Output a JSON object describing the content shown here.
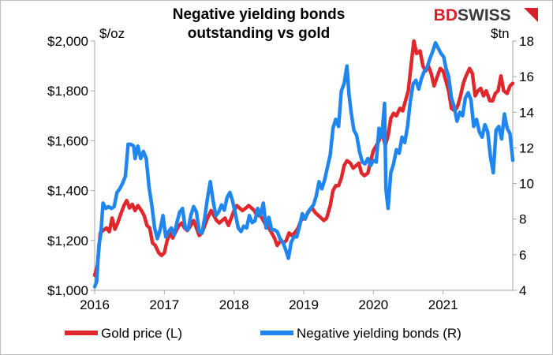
{
  "logo": {
    "part1": "BD",
    "part2": "SWISS"
  },
  "chart_data": {
    "type": "line",
    "title": [
      "Negative yielding bonds",
      "outstanding vs gold"
    ],
    "ylabel_left": "$/oz",
    "ylabel_right": "$tn",
    "x_ticks": [
      "2016",
      "2017",
      "2018",
      "2019",
      "2020",
      "2021"
    ],
    "xlim": [
      2016.0,
      2022.0
    ],
    "ylim_left": [
      1000,
      2000
    ],
    "ylim_right": [
      4,
      18
    ],
    "y_ticks_left": [
      "$1,000",
      "$1,200",
      "$1,400",
      "$1,600",
      "$1,800",
      "$2,000"
    ],
    "y_ticks_right": [
      "4",
      "6",
      "8",
      "10",
      "12",
      "14",
      "16",
      "18"
    ],
    "grid": false,
    "legend_position": "bottom",
    "colors": {
      "gold": "#e0282c",
      "bonds": "#1f86f0"
    },
    "series": [
      {
        "name": "Gold price (L)",
        "axis": "left",
        "points": [
          [
            2016.0,
            1060
          ],
          [
            2016.04,
            1100
          ],
          [
            2016.08,
            1230
          ],
          [
            2016.12,
            1240
          ],
          [
            2016.17,
            1250
          ],
          [
            2016.21,
            1235
          ],
          [
            2016.25,
            1290
          ],
          [
            2016.29,
            1245
          ],
          [
            2016.33,
            1270
          ],
          [
            2016.38,
            1310
          ],
          [
            2016.42,
            1340
          ],
          [
            2016.46,
            1360
          ],
          [
            2016.5,
            1330
          ],
          [
            2016.54,
            1345
          ],
          [
            2016.58,
            1320
          ],
          [
            2016.62,
            1340
          ],
          [
            2016.67,
            1320
          ],
          [
            2016.71,
            1300
          ],
          [
            2016.75,
            1260
          ],
          [
            2016.79,
            1250
          ],
          [
            2016.83,
            1190
          ],
          [
            2016.87,
            1180
          ],
          [
            2016.92,
            1150
          ],
          [
            2016.96,
            1140
          ],
          [
            2017.0,
            1150
          ],
          [
            2017.04,
            1200
          ],
          [
            2017.08,
            1230
          ],
          [
            2017.12,
            1210
          ],
          [
            2017.17,
            1240
          ],
          [
            2017.21,
            1260
          ],
          [
            2017.25,
            1270
          ],
          [
            2017.29,
            1250
          ],
          [
            2017.33,
            1240
          ],
          [
            2017.38,
            1260
          ],
          [
            2017.42,
            1280
          ],
          [
            2017.46,
            1250
          ],
          [
            2017.5,
            1220
          ],
          [
            2017.54,
            1230
          ],
          [
            2017.58,
            1260
          ],
          [
            2017.62,
            1290
          ],
          [
            2017.67,
            1320
          ],
          [
            2017.71,
            1300
          ],
          [
            2017.75,
            1280
          ],
          [
            2017.79,
            1270
          ],
          [
            2017.83,
            1280
          ],
          [
            2017.87,
            1290
          ],
          [
            2017.92,
            1260
          ],
          [
            2017.96,
            1290
          ],
          [
            2018.0,
            1320
          ],
          [
            2018.04,
            1340
          ],
          [
            2018.08,
            1330
          ],
          [
            2018.12,
            1320
          ],
          [
            2018.17,
            1330
          ],
          [
            2018.21,
            1340
          ],
          [
            2018.25,
            1330
          ],
          [
            2018.29,
            1320
          ],
          [
            2018.33,
            1300
          ],
          [
            2018.38,
            1300
          ],
          [
            2018.42,
            1280
          ],
          [
            2018.46,
            1260
          ],
          [
            2018.5,
            1250
          ],
          [
            2018.54,
            1230
          ],
          [
            2018.58,
            1210
          ],
          [
            2018.62,
            1180
          ],
          [
            2018.67,
            1200
          ],
          [
            2018.71,
            1190
          ],
          [
            2018.75,
            1200
          ],
          [
            2018.79,
            1230
          ],
          [
            2018.83,
            1220
          ],
          [
            2018.87,
            1230
          ],
          [
            2018.92,
            1250
          ],
          [
            2018.96,
            1280
          ],
          [
            2019.0,
            1290
          ],
          [
            2019.04,
            1300
          ],
          [
            2019.08,
            1320
          ],
          [
            2019.12,
            1330
          ],
          [
            2019.17,
            1310
          ],
          [
            2019.21,
            1300
          ],
          [
            2019.25,
            1290
          ],
          [
            2019.29,
            1280
          ],
          [
            2019.33,
            1290
          ],
          [
            2019.38,
            1340
          ],
          [
            2019.42,
            1400
          ],
          [
            2019.46,
            1420
          ],
          [
            2019.5,
            1420
          ],
          [
            2019.54,
            1450
          ],
          [
            2019.58,
            1500
          ],
          [
            2019.62,
            1520
          ],
          [
            2019.67,
            1510
          ],
          [
            2019.71,
            1490
          ],
          [
            2019.75,
            1500
          ],
          [
            2019.79,
            1510
          ],
          [
            2019.83,
            1470
          ],
          [
            2019.87,
            1460
          ],
          [
            2019.92,
            1470
          ],
          [
            2019.96,
            1520
          ],
          [
            2020.0,
            1560
          ],
          [
            2020.04,
            1580
          ],
          [
            2020.08,
            1600
          ],
          [
            2020.12,
            1640
          ],
          [
            2020.17,
            1580
          ],
          [
            2020.21,
            1620
          ],
          [
            2020.25,
            1690
          ],
          [
            2020.29,
            1710
          ],
          [
            2020.33,
            1700
          ],
          [
            2020.38,
            1730
          ],
          [
            2020.42,
            1720
          ],
          [
            2020.46,
            1760
          ],
          [
            2020.5,
            1800
          ],
          [
            2020.54,
            1900
          ],
          [
            2020.58,
            2000
          ],
          [
            2020.62,
            1950
          ],
          [
            2020.67,
            1960
          ],
          [
            2020.71,
            1900
          ],
          [
            2020.75,
            1880
          ],
          [
            2020.79,
            1900
          ],
          [
            2020.83,
            1870
          ],
          [
            2020.87,
            1820
          ],
          [
            2020.92,
            1860
          ],
          [
            2020.96,
            1890
          ],
          [
            2021.0,
            1880
          ],
          [
            2021.04,
            1840
          ],
          [
            2021.08,
            1800
          ],
          [
            2021.12,
            1730
          ],
          [
            2021.17,
            1720
          ],
          [
            2021.21,
            1740
          ],
          [
            2021.25,
            1780
          ],
          [
            2021.29,
            1830
          ],
          [
            2021.33,
            1860
          ],
          [
            2021.38,
            1890
          ],
          [
            2021.42,
            1870
          ],
          [
            2021.46,
            1780
          ],
          [
            2021.5,
            1800
          ],
          [
            2021.54,
            1810
          ],
          [
            2021.58,
            1780
          ],
          [
            2021.62,
            1800
          ],
          [
            2021.67,
            1760
          ],
          [
            2021.71,
            1760
          ],
          [
            2021.75,
            1790
          ],
          [
            2021.79,
            1800
          ],
          [
            2021.83,
            1860
          ],
          [
            2021.87,
            1800
          ],
          [
            2021.92,
            1790
          ],
          [
            2021.96,
            1820
          ],
          [
            2022.0,
            1830
          ]
        ]
      },
      {
        "name": "Negative yielding bonds (R)",
        "axis": "right",
        "points": [
          [
            2016.0,
            4.2
          ],
          [
            2016.03,
            4.5
          ],
          [
            2016.06,
            6.5
          ],
          [
            2016.09,
            7.2
          ],
          [
            2016.12,
            8.9
          ],
          [
            2016.16,
            8.6
          ],
          [
            2016.2,
            8.7
          ],
          [
            2016.24,
            8.6
          ],
          [
            2016.28,
            8.7
          ],
          [
            2016.32,
            9.5
          ],
          [
            2016.36,
            9.7
          ],
          [
            2016.4,
            10.0
          ],
          [
            2016.44,
            10.4
          ],
          [
            2016.48,
            12.2
          ],
          [
            2016.52,
            12.2
          ],
          [
            2016.56,
            12.1
          ],
          [
            2016.58,
            11.4
          ],
          [
            2016.62,
            12.1
          ],
          [
            2016.66,
            11.4
          ],
          [
            2016.7,
            11.8
          ],
          [
            2016.74,
            11.4
          ],
          [
            2016.78,
            9.8
          ],
          [
            2016.82,
            8.8
          ],
          [
            2016.86,
            7.5
          ],
          [
            2016.9,
            6.9
          ],
          [
            2016.94,
            7.4
          ],
          [
            2016.98,
            8.2
          ],
          [
            2017.02,
            7.0
          ],
          [
            2017.06,
            7.3
          ],
          [
            2017.1,
            7.5
          ],
          [
            2017.14,
            7.1
          ],
          [
            2017.18,
            7.8
          ],
          [
            2017.22,
            8.4
          ],
          [
            2017.26,
            8.6
          ],
          [
            2017.3,
            7.5
          ],
          [
            2017.34,
            7.4
          ],
          [
            2017.38,
            8.2
          ],
          [
            2017.42,
            8.7
          ],
          [
            2017.46,
            8.4
          ],
          [
            2017.5,
            7.3
          ],
          [
            2017.54,
            7.2
          ],
          [
            2017.58,
            8.1
          ],
          [
            2017.62,
            9.2
          ],
          [
            2017.66,
            10.1
          ],
          [
            2017.7,
            9.0
          ],
          [
            2017.74,
            8.2
          ],
          [
            2017.78,
            8.4
          ],
          [
            2017.82,
            8.8
          ],
          [
            2017.86,
            8.5
          ],
          [
            2017.9,
            9.2
          ],
          [
            2017.94,
            9.5
          ],
          [
            2017.98,
            9.0
          ],
          [
            2018.02,
            8.3
          ],
          [
            2018.06,
            7.5
          ],
          [
            2018.1,
            7.3
          ],
          [
            2018.14,
            7.6
          ],
          [
            2018.18,
            7.5
          ],
          [
            2018.22,
            8.2
          ],
          [
            2018.26,
            7.8
          ],
          [
            2018.3,
            7.9
          ],
          [
            2018.34,
            8.6
          ],
          [
            2018.38,
            8.2
          ],
          [
            2018.42,
            8.9
          ],
          [
            2018.46,
            7.5
          ],
          [
            2018.5,
            8.1
          ],
          [
            2018.54,
            7.4
          ],
          [
            2018.58,
            7.4
          ],
          [
            2018.62,
            7.3
          ],
          [
            2018.66,
            6.9
          ],
          [
            2018.7,
            6.7
          ],
          [
            2018.74,
            6.3
          ],
          [
            2018.78,
            5.8
          ],
          [
            2018.82,
            6.7
          ],
          [
            2018.86,
            7.0
          ],
          [
            2018.9,
            7.0
          ],
          [
            2018.94,
            7.6
          ],
          [
            2018.98,
            8.3
          ],
          [
            2019.02,
            8.0
          ],
          [
            2019.06,
            8.4
          ],
          [
            2019.1,
            8.6
          ],
          [
            2019.14,
            8.8
          ],
          [
            2019.18,
            9.3
          ],
          [
            2019.22,
            10.1
          ],
          [
            2019.26,
            9.7
          ],
          [
            2019.3,
            10.2
          ],
          [
            2019.34,
            10.9
          ],
          [
            2019.38,
            11.6
          ],
          [
            2019.42,
            13.1
          ],
          [
            2019.46,
            13.6
          ],
          [
            2019.5,
            13.2
          ],
          [
            2019.54,
            15.2
          ],
          [
            2019.58,
            15.6
          ],
          [
            2019.62,
            16.6
          ],
          [
            2019.65,
            15.0
          ],
          [
            2019.68,
            14.0
          ],
          [
            2019.72,
            13.0
          ],
          [
            2019.76,
            12.7
          ],
          [
            2019.8,
            11.8
          ],
          [
            2019.84,
            11.2
          ],
          [
            2019.88,
            11.1
          ],
          [
            2019.92,
            11.4
          ],
          [
            2019.96,
            11.0
          ],
          [
            2020.0,
            11.3
          ],
          [
            2020.04,
            11.2
          ],
          [
            2020.08,
            13.1
          ],
          [
            2020.12,
            12.6
          ],
          [
            2020.16,
            14.5
          ],
          [
            2020.18,
            9.7
          ],
          [
            2020.21,
            8.6
          ],
          [
            2020.25,
            10.6
          ],
          [
            2020.29,
            11.1
          ],
          [
            2020.33,
            11.9
          ],
          [
            2020.37,
            11.7
          ],
          [
            2020.41,
            12.6
          ],
          [
            2020.45,
            12.3
          ],
          [
            2020.49,
            13.2
          ],
          [
            2020.53,
            14.6
          ],
          [
            2020.57,
            15.6
          ],
          [
            2020.61,
            15.8
          ],
          [
            2020.65,
            15.3
          ],
          [
            2020.69,
            15.9
          ],
          [
            2020.73,
            16.3
          ],
          [
            2020.77,
            16.5
          ],
          [
            2020.81,
            17.0
          ],
          [
            2020.85,
            17.4
          ],
          [
            2020.89,
            17.9
          ],
          [
            2020.93,
            17.6
          ],
          [
            2020.97,
            17.3
          ],
          [
            2021.01,
            17.1
          ],
          [
            2021.04,
            16.5
          ],
          [
            2021.08,
            16.0
          ],
          [
            2021.12,
            14.8
          ],
          [
            2021.16,
            14.3
          ],
          [
            2021.2,
            13.5
          ],
          [
            2021.24,
            14.0
          ],
          [
            2021.28,
            13.8
          ],
          [
            2021.32,
            14.8
          ],
          [
            2021.36,
            15.1
          ],
          [
            2021.4,
            14.7
          ],
          [
            2021.44,
            13.2
          ],
          [
            2021.48,
            13.6
          ],
          [
            2021.52,
            12.9
          ],
          [
            2021.56,
            12.6
          ],
          [
            2021.6,
            13.3
          ],
          [
            2021.64,
            12.9
          ],
          [
            2021.68,
            11.5
          ],
          [
            2021.72,
            10.6
          ],
          [
            2021.76,
            13.0
          ],
          [
            2021.8,
            13.2
          ],
          [
            2021.84,
            12.5
          ],
          [
            2021.88,
            13.9
          ],
          [
            2021.92,
            13.1
          ],
          [
            2021.96,
            12.8
          ],
          [
            2022.0,
            11.3
          ]
        ]
      }
    ]
  }
}
